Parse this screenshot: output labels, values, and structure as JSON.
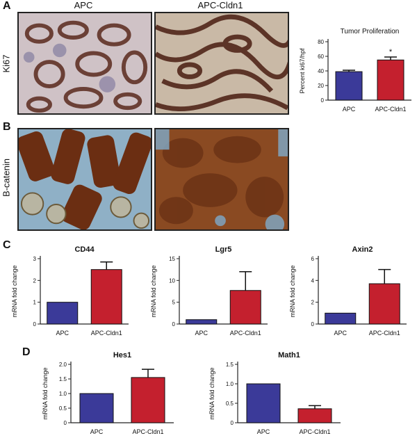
{
  "panels": {
    "A": {
      "letter": "A",
      "col_left": "APC",
      "col_right": "APC-Cldn1",
      "row_label": "Ki67"
    },
    "B": {
      "letter": "B",
      "row_label": "B-catenin"
    },
    "C": {
      "letter": "C"
    },
    "D": {
      "letter": "D"
    }
  },
  "colors": {
    "apc": "#3b3a99",
    "cldn1": "#c4202e",
    "axis": "#222222"
  },
  "chart_data": [
    {
      "id": "ki67",
      "type": "bar",
      "title": "Tumor Proliferation",
      "categories": [
        "APC",
        "APC-Cldn1"
      ],
      "values": [
        39,
        55
      ],
      "errors": [
        2,
        4
      ],
      "ylabel": "Percent ki67/hpf",
      "ylim": [
        0,
        80
      ],
      "yticks": [
        "0",
        "20",
        "40",
        "60",
        "80"
      ],
      "annotations": [
        "",
        "*"
      ],
      "bold_title": false
    },
    {
      "id": "cd44",
      "type": "bar",
      "title": "CD44",
      "categories": [
        "APC",
        "APC-Cldn1"
      ],
      "values": [
        1.0,
        2.5
      ],
      "errors": [
        0,
        0.35
      ],
      "ylabel": "mRNA fold change",
      "ylim": [
        0,
        3
      ],
      "yticks": [
        "0",
        "1",
        "2",
        "3"
      ],
      "annotations": [
        "",
        ""
      ],
      "bold_title": true
    },
    {
      "id": "lgr5",
      "type": "bar",
      "title": "Lgr5",
      "categories": [
        "APC",
        "APC-Cldn1"
      ],
      "values": [
        1.0,
        7.7
      ],
      "errors": [
        0,
        4.3
      ],
      "ylabel": "mRNA fold change",
      "ylim": [
        0,
        15
      ],
      "yticks": [
        "0",
        "5",
        "10",
        "15"
      ],
      "annotations": [
        "",
        ""
      ],
      "bold_title": true
    },
    {
      "id": "axin2",
      "type": "bar",
      "title": "Axin2",
      "categories": [
        "APC",
        "APC-Cldn1"
      ],
      "values": [
        1.0,
        3.7
      ],
      "errors": [
        0,
        1.3
      ],
      "ylabel": "mRNA fold change",
      "ylim": [
        0,
        6
      ],
      "yticks": [
        "0",
        "2",
        "4",
        "6"
      ],
      "annotations": [
        "",
        ""
      ],
      "bold_title": true
    },
    {
      "id": "hes1",
      "type": "bar",
      "title": "Hes1",
      "categories": [
        "APC",
        "APC-Cldn1"
      ],
      "values": [
        1.0,
        1.55
      ],
      "errors": [
        0,
        0.28
      ],
      "ylabel": "mRNA fold change",
      "ylim": [
        0,
        2.0
      ],
      "yticks": [
        "0",
        "0.5",
        "1.0",
        "1.5",
        "2.0"
      ],
      "annotations": [
        "",
        ""
      ],
      "bold_title": true
    },
    {
      "id": "math1",
      "type": "bar",
      "title": "Math1",
      "categories": [
        "APC",
        "APC-Cldn1"
      ],
      "values": [
        1.0,
        0.36
      ],
      "errors": [
        0,
        0.08
      ],
      "ylabel": "mRNA fold change",
      "ylim": [
        0,
        1.5
      ],
      "yticks": [
        "0",
        "0.5",
        "1.0",
        "1.5"
      ],
      "annotations": [
        "",
        ""
      ],
      "bold_title": true
    }
  ]
}
